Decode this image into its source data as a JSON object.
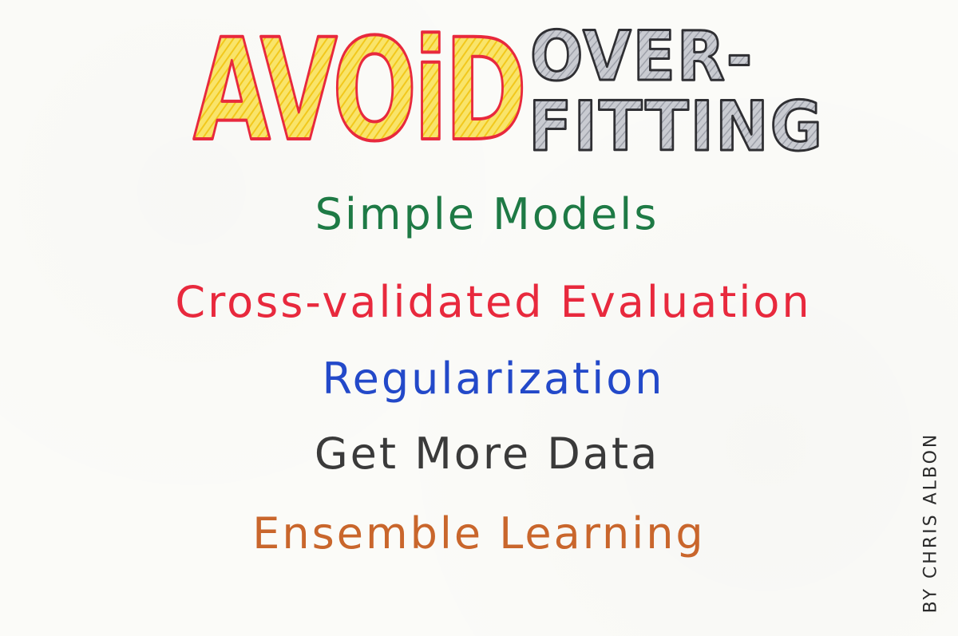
{
  "title": {
    "word1": "AVOiD",
    "word2_line1": "OVER-",
    "word2_line2": "FITTING"
  },
  "tips": [
    "Simple Models",
    "Cross-validated Evaluation",
    "Regularization",
    "Get More Data",
    "Ensemble Learning"
  ],
  "signature": "BY CHRIS ALBON",
  "colors": {
    "avoid_fill": "#f7dc3a",
    "avoid_outline": "#e8293d",
    "overfitting_fill": "#b9bcc4",
    "overfitting_outline": "#2f2f33",
    "tip1": "#1e7a45",
    "tip2": "#e8293d",
    "tip3": "#2349c9",
    "tip4": "#3a3a3a",
    "tip5": "#c9662c"
  }
}
